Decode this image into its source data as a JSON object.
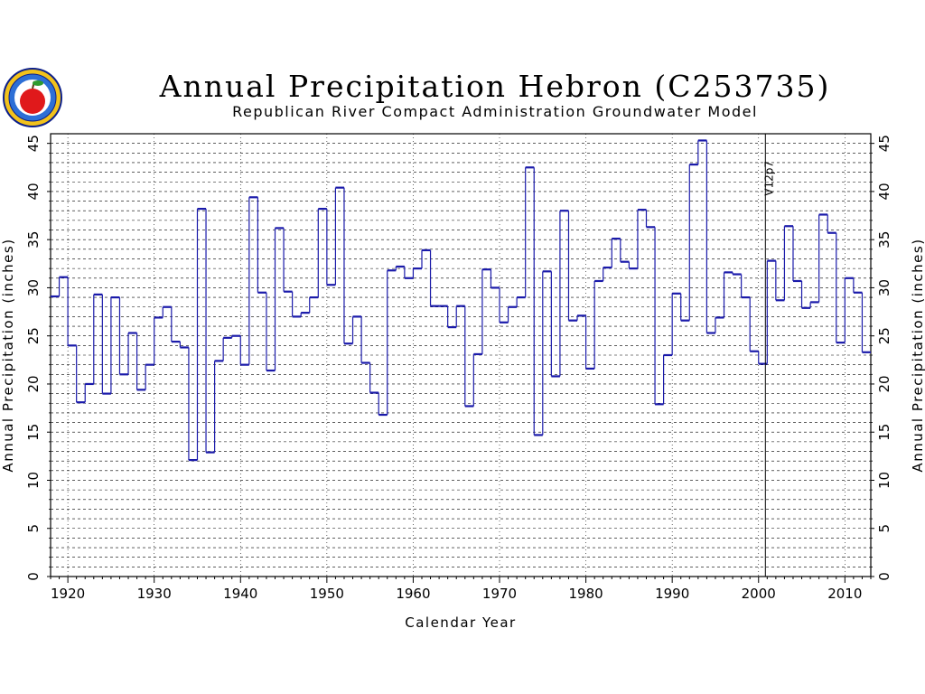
{
  "chart_data": {
    "type": "step",
    "title": "Annual Precipitation Hebron (C253735)",
    "subtitle": "Republican River Compact Administration Groundwater Model",
    "xlabel": "Calendar Year",
    "ylabel": "Annual Precipitation (inches)",
    "xlim": [
      1918,
      2013
    ],
    "ylim": [
      0,
      46
    ],
    "x_ticks": [
      1920,
      1930,
      1940,
      1950,
      1960,
      1970,
      1980,
      1990,
      2000,
      2010
    ],
    "y_ticks": [
      0,
      5,
      10,
      15,
      20,
      25,
      30,
      35,
      40,
      45
    ],
    "grid": true,
    "line_color": "#1a1aaa",
    "annotation": {
      "x": 2001,
      "label": "V12p7"
    },
    "x": [
      1918,
      1919,
      1920,
      1921,
      1922,
      1923,
      1924,
      1925,
      1926,
      1927,
      1928,
      1929,
      1930,
      1931,
      1932,
      1933,
      1934,
      1935,
      1936,
      1937,
      1938,
      1939,
      1940,
      1941,
      1942,
      1943,
      1944,
      1945,
      1946,
      1947,
      1948,
      1949,
      1950,
      1951,
      1952,
      1953,
      1954,
      1955,
      1956,
      1957,
      1958,
      1959,
      1960,
      1961,
      1962,
      1963,
      1964,
      1965,
      1966,
      1967,
      1968,
      1969,
      1970,
      1971,
      1972,
      1973,
      1974,
      1975,
      1976,
      1977,
      1978,
      1979,
      1980,
      1981,
      1982,
      1983,
      1984,
      1985,
      1986,
      1987,
      1988,
      1989,
      1990,
      1991,
      1992,
      1993,
      1994,
      1995,
      1996,
      1997,
      1998,
      1999,
      2000,
      2001,
      2002,
      2003,
      2004,
      2005,
      2006,
      2007,
      2008,
      2009,
      2010,
      2011,
      2012
    ],
    "values": [
      29.1,
      31.1,
      24.0,
      18.1,
      20.0,
      29.3,
      19.0,
      29.0,
      21.0,
      25.3,
      19.4,
      22.0,
      26.9,
      28.0,
      24.4,
      23.8,
      12.1,
      38.2,
      12.9,
      22.4,
      24.8,
      25.0,
      22.0,
      39.4,
      29.5,
      21.4,
      36.2,
      29.6,
      27.0,
      27.4,
      29.0,
      38.2,
      30.3,
      40.4,
      24.2,
      27.0,
      22.2,
      19.1,
      16.8,
      31.8,
      32.2,
      31.0,
      32.0,
      33.9,
      28.1,
      28.1,
      25.9,
      28.1,
      17.7,
      23.1,
      31.9,
      30.0,
      26.4,
      28.0,
      29.0,
      42.5,
      14.7,
      31.7,
      20.8,
      38.0,
      26.6,
      27.1,
      21.6,
      30.7,
      32.1,
      35.1,
      32.7,
      32.0,
      38.1,
      36.3,
      17.9,
      23.0,
      29.4,
      26.6,
      42.8,
      45.3,
      25.3,
      26.9,
      31.6,
      31.4,
      29.0,
      23.4,
      22.1,
      32.8,
      28.7,
      36.4,
      30.7,
      27.9,
      28.5,
      37.6,
      35.7,
      24.3,
      31.0,
      29.5,
      23.3
    ]
  }
}
